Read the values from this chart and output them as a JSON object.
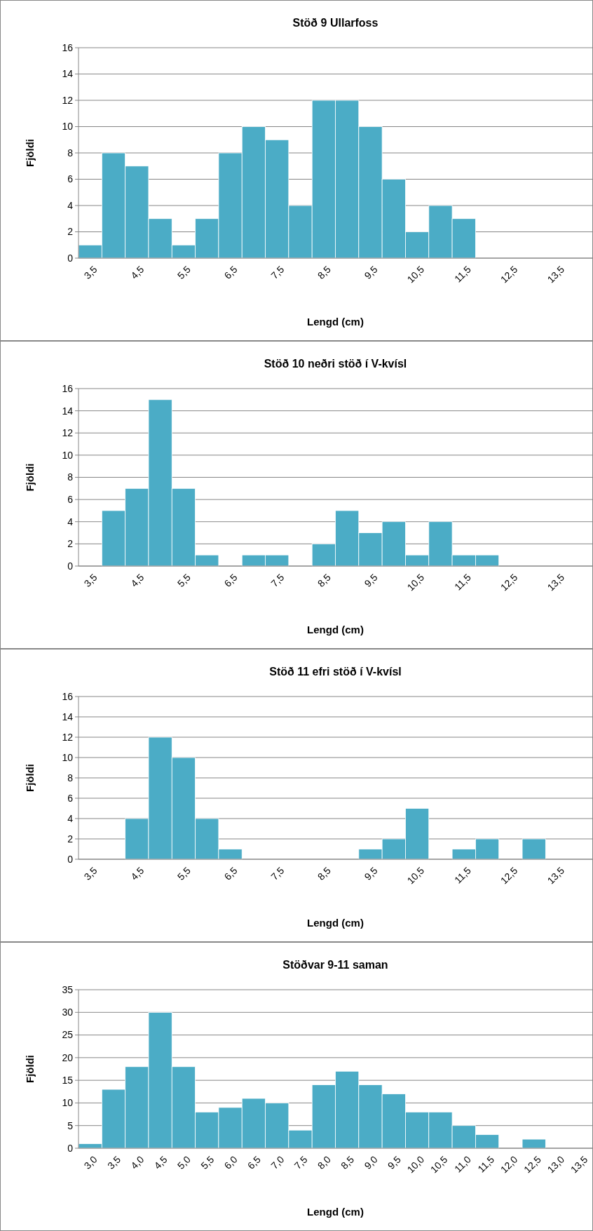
{
  "chart_data": [
    {
      "type": "bar",
      "title": "Stöð 9 Ullarfoss",
      "xlabel": "Lengd (cm)",
      "ylabel": "Fjöldi",
      "color": "#4bacc6",
      "grid": "y",
      "ylim": [
        0,
        16
      ],
      "yticks": [
        0,
        2,
        4,
        6,
        8,
        10,
        12,
        14,
        16
      ],
      "categories": [
        "3,5",
        null,
        "4,5",
        null,
        "5,5",
        null,
        "6,5",
        null,
        "7,5",
        null,
        "8,5",
        null,
        "9,5",
        null,
        "10,5",
        null,
        "11,5",
        null,
        "12,5",
        null,
        "13,5",
        null
      ],
      "values": [
        1,
        8,
        7,
        3,
        1,
        3,
        8,
        10,
        9,
        4,
        12,
        12,
        10,
        6,
        2,
        4,
        3,
        0,
        0,
        0,
        0,
        0
      ]
    },
    {
      "type": "bar",
      "title": "Stöð 10 neðri stöð í V-kvísl",
      "xlabel": "Lengd (cm)",
      "ylabel": "Fjöldi",
      "color": "#4bacc6",
      "grid": "y",
      "ylim": [
        0,
        16
      ],
      "yticks": [
        0,
        2,
        4,
        6,
        8,
        10,
        12,
        14,
        16
      ],
      "categories": [
        "3,5",
        null,
        "4,5",
        null,
        "5,5",
        null,
        "6,5",
        null,
        "7,5",
        null,
        "8,5",
        null,
        "9,5",
        null,
        "10,5",
        null,
        "11,5",
        null,
        "12,5",
        null,
        "13,5",
        null
      ],
      "values": [
        0,
        5,
        7,
        15,
        7,
        1,
        0,
        1,
        1,
        0,
        2,
        5,
        3,
        4,
        1,
        4,
        1,
        1,
        0,
        0,
        0,
        0
      ]
    },
    {
      "type": "bar",
      "title": "Stöð 11 efri stöð í V-kvísl",
      "xlabel": "Lengd (cm)",
      "ylabel": "Fjöldi",
      "color": "#4bacc6",
      "grid": "y",
      "ylim": [
        0,
        16
      ],
      "yticks": [
        0,
        2,
        4,
        6,
        8,
        10,
        12,
        14,
        16
      ],
      "categories": [
        "3,5",
        null,
        "4,5",
        null,
        "5,5",
        null,
        "6,5",
        null,
        "7,5",
        null,
        "8,5",
        null,
        "9,5",
        null,
        "10,5",
        null,
        "11,5",
        null,
        "12,5",
        null,
        "13,5",
        null
      ],
      "values": [
        0,
        0,
        4,
        12,
        10,
        4,
        1,
        0,
        0,
        0,
        0,
        0,
        1,
        2,
        5,
        0,
        1,
        2,
        0,
        2,
        0,
        0
      ]
    },
    {
      "type": "bar",
      "title": "Stöðvar 9-11 saman",
      "xlabel": "Lengd (cm)",
      "ylabel": "Fjöldi",
      "color": "#4bacc6",
      "grid": "y",
      "ylim": [
        0,
        35
      ],
      "yticks": [
        0,
        5,
        10,
        15,
        20,
        25,
        30,
        35
      ],
      "categories": [
        "3,0",
        "3,5",
        "4,0",
        "4,5",
        "5,0",
        "5,5",
        "6,0",
        "6,5",
        "7,0",
        "7,5",
        "8,0",
        "8,5",
        "9,0",
        "9,5",
        "10,0",
        "10,5",
        "11,0",
        "11,5",
        "12,0",
        "12,5",
        "13,0",
        "13,5"
      ],
      "values": [
        1,
        13,
        18,
        30,
        18,
        8,
        9,
        11,
        10,
        4,
        14,
        17,
        14,
        12,
        8,
        8,
        5,
        3,
        0,
        2,
        0,
        0
      ]
    }
  ]
}
